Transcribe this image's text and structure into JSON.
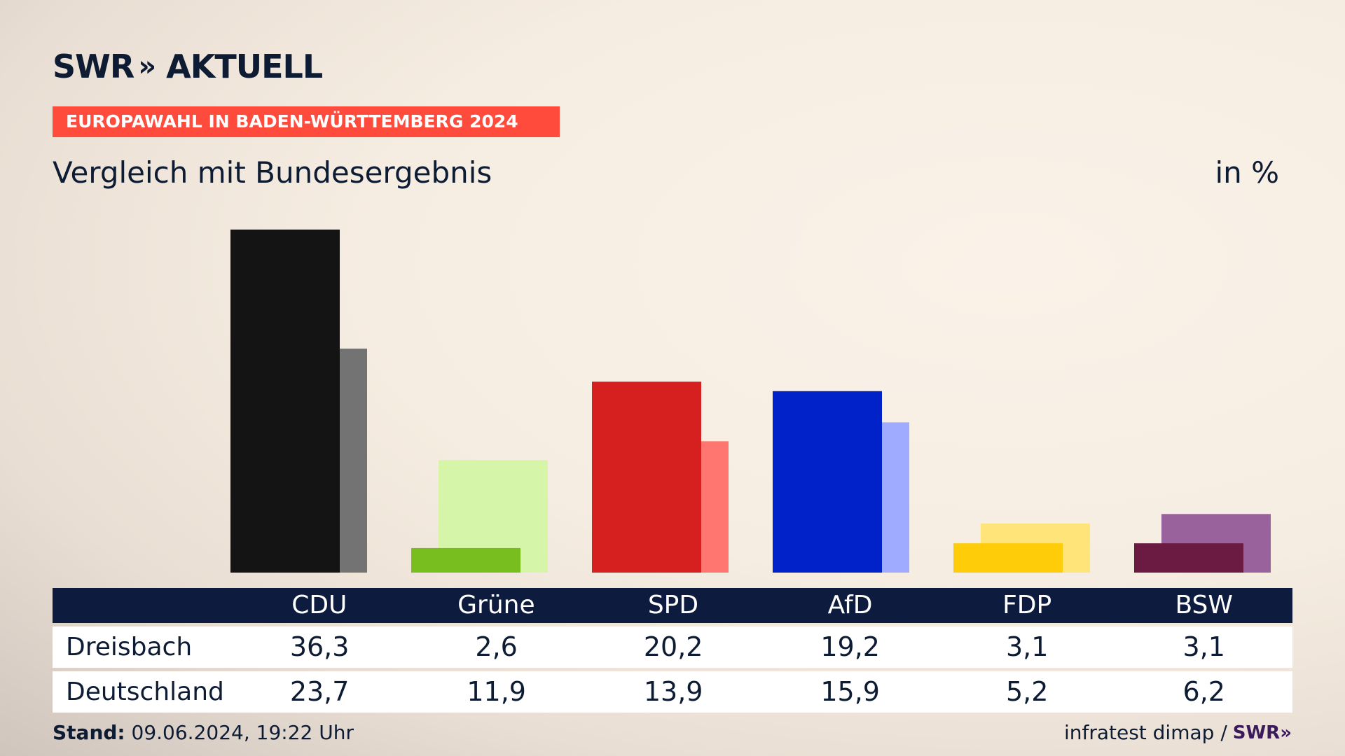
{
  "logo": {
    "text": "SWR",
    "chevrons": "»",
    "suffix": "AKTUELL"
  },
  "banner": "EUROPAWAHL IN BADEN-WÜRTTEMBERG 2024",
  "title": "Vergleich mit Bundesergebnis",
  "unit": "in %",
  "chart_data": {
    "type": "bar",
    "categories": [
      "CDU",
      "Grüne",
      "SPD",
      "AfD",
      "FDP",
      "BSW"
    ],
    "series": [
      {
        "name": "Dreisbach",
        "values": [
          36.3,
          2.6,
          20.2,
          19.2,
          3.1,
          3.1
        ]
      },
      {
        "name": "Deutschland",
        "values": [
          23.7,
          11.9,
          13.9,
          15.9,
          5.2,
          6.2
        ]
      }
    ],
    "colors_primary": [
      "#141414",
      "#78be1e",
      "#d61f1f",
      "#0022c8",
      "#ffcc0a",
      "#6b1a42"
    ],
    "colors_secondary": [
      "#737373",
      "#d5f5a8",
      "#ff7570",
      "#9eabff",
      "#ffe479",
      "#9a629c"
    ],
    "ylim": [
      0,
      37
    ]
  },
  "table": {
    "header": [
      "CDU",
      "Grüne",
      "SPD",
      "AfD",
      "FDP",
      "BSW"
    ],
    "rows": [
      {
        "label": "Dreisbach",
        "values": [
          "36,3",
          "2,6",
          "20,2",
          "19,2",
          "3,1",
          "3,1"
        ]
      },
      {
        "label": "Deutschland",
        "values": [
          "23,7",
          "11,9",
          "13,9",
          "15,9",
          "5,2",
          "6,2"
        ]
      }
    ]
  },
  "footer": {
    "stand_label": "Stand:",
    "stand_value": " 09.06.2024, 19:22 Uhr",
    "source": "infratest dimap /",
    "source_logo": "SWR»"
  }
}
